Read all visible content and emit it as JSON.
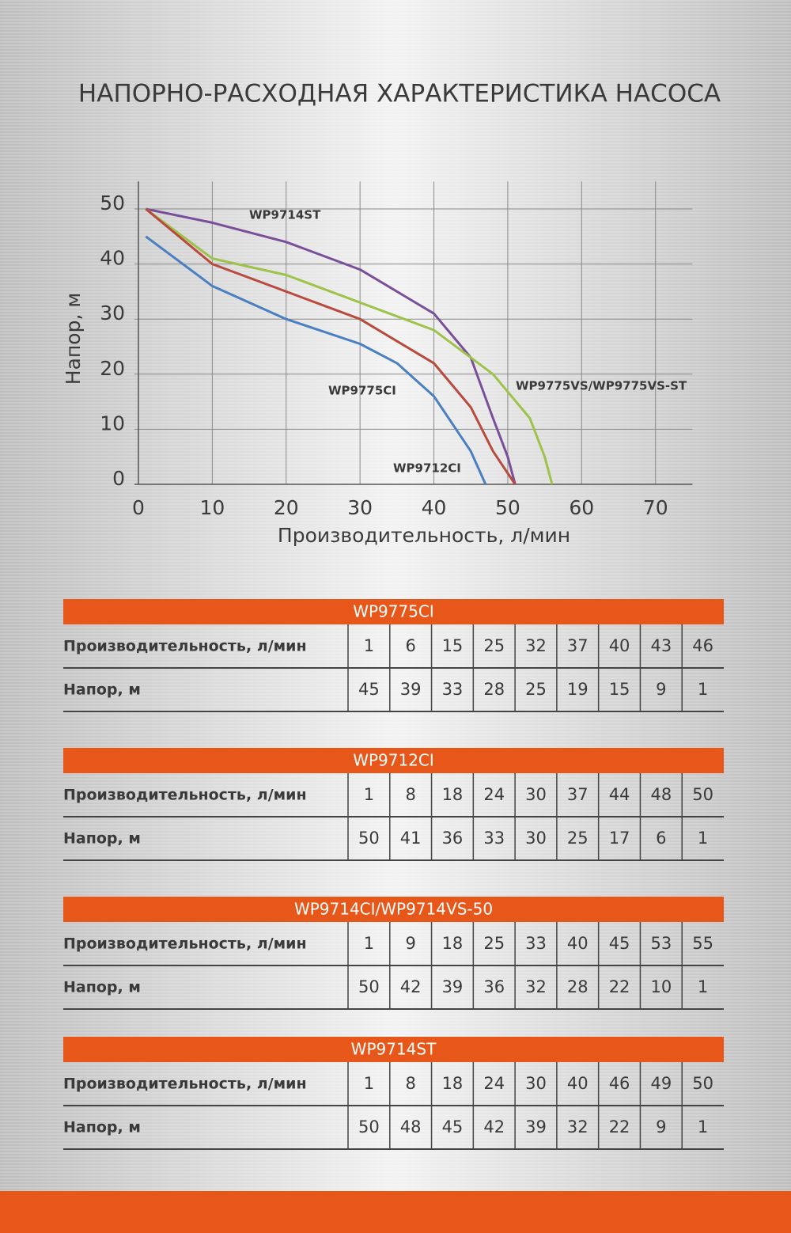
{
  "chart_data": {
    "type": "line",
    "title": "НАПОРНО-РАСХОДНАЯ ХАРАКТЕРИСТИКА НАСОСА",
    "x_label": "Производительность, л/мин",
    "y_label": "Напор, м",
    "xlim": [
      0,
      75
    ],
    "ylim": [
      0,
      55
    ],
    "xticks": [
      0,
      10,
      20,
      30,
      40,
      50,
      60,
      70
    ],
    "yticks": [
      0,
      10,
      20,
      30,
      40,
      50
    ],
    "grid": true,
    "series": [
      {
        "name": "WP9714ST",
        "color": "#7a4f9a",
        "x": [
          1,
          10,
          20,
          30,
          40,
          45,
          48,
          50,
          51
        ],
        "values": [
          50,
          47.5,
          44,
          39,
          31,
          23,
          12,
          5,
          0
        ]
      },
      {
        "name": "WP9775VS/WP9775VS-ST",
        "color": "#9dc34a",
        "x": [
          1,
          10,
          20,
          30,
          40,
          48,
          53,
          55,
          56
        ],
        "values": [
          50,
          41,
          38,
          33,
          28,
          20,
          12,
          5,
          0
        ]
      },
      {
        "name": "WP9775CI",
        "color": "#4a7fc1",
        "x": [
          1,
          10,
          20,
          30,
          35,
          40,
          45,
          47
        ],
        "values": [
          45,
          36,
          30,
          25.5,
          22,
          16,
          6,
          0
        ]
      },
      {
        "name": "WP9712CI",
        "color": "#b84a3e",
        "x": [
          1,
          10,
          20,
          30,
          40,
          45,
          48,
          51
        ],
        "values": [
          50,
          40,
          35,
          30,
          22,
          14,
          6,
          0
        ]
      }
    ]
  },
  "tables": [
    {
      "title": "WP9775CI",
      "rows": [
        {
          "label": "Производительность, л/мин",
          "values": [
            1,
            6,
            15,
            25,
            32,
            37,
            40,
            43,
            46
          ]
        },
        {
          "label": "Напор, м",
          "values": [
            45,
            39,
            33,
            28,
            25,
            19,
            15,
            9,
            1
          ]
        }
      ]
    },
    {
      "title": "WP9712CI",
      "rows": [
        {
          "label": "Производительность, л/мин",
          "values": [
            1,
            8,
            18,
            24,
            30,
            37,
            44,
            48,
            50
          ]
        },
        {
          "label": "Напор, м",
          "values": [
            50,
            41,
            36,
            33,
            30,
            25,
            17,
            6,
            1
          ]
        }
      ]
    },
    {
      "title": "WP9714CI/WP9714VS-50",
      "rows": [
        {
          "label": "Производительность, л/мин",
          "values": [
            1,
            9,
            18,
            25,
            33,
            40,
            45,
            53,
            55
          ]
        },
        {
          "label": "Напор, м",
          "values": [
            50,
            42,
            39,
            36,
            32,
            28,
            22,
            10,
            1
          ]
        }
      ]
    },
    {
      "title": "WP9714ST",
      "rows": [
        {
          "label": "Производительность, л/мин",
          "values": [
            1,
            8,
            18,
            24,
            30,
            40,
            46,
            49,
            50
          ]
        },
        {
          "label": "Напор, м",
          "values": [
            50,
            48,
            45,
            42,
            39,
            32,
            22,
            9,
            1
          ]
        }
      ]
    }
  ]
}
